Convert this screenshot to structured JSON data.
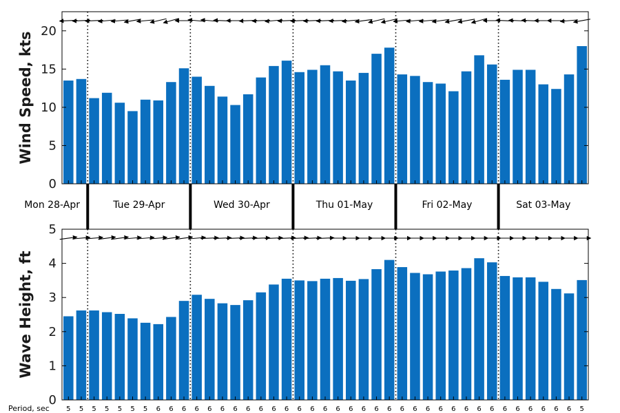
{
  "colors": {
    "bar": "#0b6fbf",
    "axis": "#000000",
    "arrow": "#000000"
  },
  "chart_data": [
    {
      "type": "bar",
      "ylabel": "Wind Speed, kts",
      "ylim": [
        0,
        22.5
      ],
      "yticks": [
        "0",
        "5",
        "10",
        "15",
        "20"
      ],
      "values": [
        13.5,
        13.7,
        11.2,
        11.9,
        10.6,
        9.5,
        11.0,
        10.9,
        13.3,
        15.1,
        14.0,
        12.8,
        11.4,
        10.3,
        11.7,
        13.9,
        15.4,
        16.1,
        14.6,
        14.9,
        15.5,
        14.7,
        13.5,
        14.5,
        17.0,
        17.8,
        14.3,
        14.1,
        13.3,
        13.1,
        12.1,
        14.7,
        16.8,
        15.6,
        13.6,
        14.9,
        14.9,
        13.0,
        12.4,
        14.3,
        18.0
      ],
      "direction_from_deg": [
        85,
        85,
        85,
        80,
        80,
        70,
        80,
        65,
        60,
        90,
        100,
        100,
        95,
        90,
        85,
        85,
        80,
        85,
        85,
        85,
        85,
        85,
        80,
        75,
        65,
        65,
        80,
        80,
        80,
        75,
        70,
        70,
        60,
        90,
        95,
        95,
        95,
        90,
        90,
        80,
        70
      ],
      "grid": false
    },
    {
      "type": "bar",
      "ylabel": "Wave Height, ft",
      "ylim": [
        0,
        5
      ],
      "yticks": [
        "0",
        "1",
        "2",
        "3",
        "4",
        "5"
      ],
      "values": [
        2.45,
        2.62,
        2.62,
        2.57,
        2.52,
        2.39,
        2.26,
        2.22,
        2.43,
        2.9,
        3.08,
        2.96,
        2.83,
        2.78,
        2.92,
        3.15,
        3.38,
        3.55,
        3.5,
        3.48,
        3.55,
        3.57,
        3.49,
        3.54,
        3.83,
        4.1,
        3.89,
        3.72,
        3.68,
        3.76,
        3.79,
        3.86,
        4.15,
        4.03,
        3.63,
        3.59,
        3.59,
        3.46,
        3.25,
        3.12,
        3.51
      ],
      "direction_from_deg": [
        255,
        260,
        260,
        255,
        255,
        260,
        260,
        260,
        255,
        255,
        260,
        265,
        265,
        265,
        265,
        265,
        265,
        265,
        265,
        265,
        265,
        270,
        270,
        270,
        270,
        270,
        270,
        270,
        270,
        270,
        270,
        270,
        270,
        270,
        270,
        270,
        270,
        270,
        270,
        270,
        270
      ],
      "grid": false
    }
  ],
  "days": [
    "Mon 28-Apr",
    "Tue 29-Apr",
    "Wed 30-Apr",
    "Thu 01-May",
    "Fri 02-May",
    "Sat 03-May"
  ],
  "day_boundaries": [
    2,
    10,
    18,
    26,
    34
  ],
  "period_title": "Period, sec",
  "periods": [
    "5",
    "5",
    "5",
    "5",
    "5",
    "5",
    "5",
    "6",
    "6",
    "6",
    "6",
    "6",
    "6",
    "6",
    "6",
    "6",
    "6",
    "6",
    "6",
    "6",
    "6",
    "6",
    "6",
    "6",
    "6",
    "6",
    "6",
    "6",
    "6",
    "6",
    "6",
    "6",
    "6",
    "6",
    "6",
    "6",
    "6",
    "6",
    "6",
    "6",
    "5"
  ]
}
